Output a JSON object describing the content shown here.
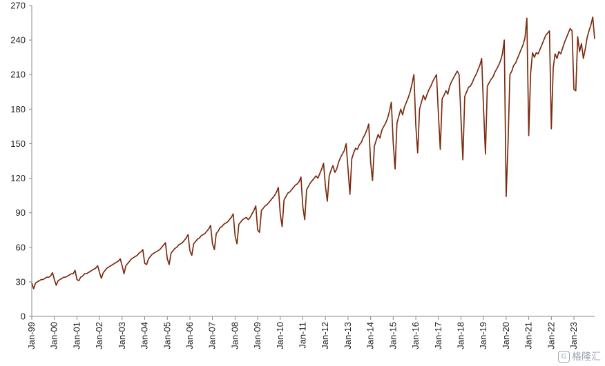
{
  "chart_data": {
    "type": "line",
    "title": "",
    "xlabel": "",
    "ylabel": "",
    "ylim": [
      0,
      270
    ],
    "y_ticks": [
      0,
      30,
      60,
      90,
      120,
      150,
      180,
      210,
      240,
      270
    ],
    "grid": false,
    "x_tick_labels": [
      "Jan-99",
      "Jan-00",
      "Jan-01",
      "Jan-02",
      "Jan-03",
      "Jan-04",
      "Jan-05",
      "Jan-06",
      "Jan-07",
      "Jan-08",
      "Jan-09",
      "Jan-10",
      "Jan-11",
      "Jan-12",
      "Jan-13",
      "Jan-14",
      "Jan-15",
      "Jan-16",
      "Jan-17",
      "Jan-18",
      "Jan-19",
      "Jan-20",
      "Jan-21",
      "Jan-22",
      "Jan-23"
    ],
    "x_range": [
      "1999-01",
      "2023-12"
    ],
    "series": [
      {
        "color": "#7b2c10",
        "x_start": "1999-01",
        "frequency": "monthly",
        "values": [
          29,
          24,
          29,
          30,
          31,
          32,
          32,
          33,
          34,
          34,
          35,
          38,
          32,
          27,
          31,
          32,
          33,
          34,
          34,
          35,
          36,
          37,
          37,
          40,
          32,
          31,
          34,
          35,
          37,
          37,
          38,
          39,
          40,
          41,
          42,
          44,
          38,
          33,
          38,
          40,
          42,
          43,
          44,
          45,
          46,
          47,
          48,
          50,
          44,
          37,
          44,
          46,
          48,
          50,
          51,
          52,
          53,
          55,
          56,
          58,
          46,
          45,
          50,
          52,
          54,
          55,
          56,
          57,
          58,
          60,
          62,
          64,
          50,
          45,
          55,
          57,
          59,
          60,
          62,
          63,
          64,
          66,
          68,
          71,
          57,
          53,
          63,
          65,
          67,
          68,
          70,
          71,
          72,
          74,
          76,
          79,
          63,
          58,
          72,
          74,
          77,
          78,
          80,
          81,
          82,
          84,
          86,
          89,
          70,
          63,
          80,
          82,
          84,
          85,
          86,
          84,
          86,
          89,
          92,
          96,
          75,
          73,
          92,
          94,
          96,
          97,
          99,
          101,
          103,
          105,
          108,
          112,
          89,
          78,
          101,
          104,
          107,
          108,
          110,
          112,
          114,
          115,
          117,
          121,
          95,
          84,
          110,
          113,
          116,
          118,
          120,
          122,
          120,
          124,
          128,
          133,
          113,
          100,
          122,
          127,
          131,
          125,
          128,
          134,
          138,
          141,
          144,
          150,
          128,
          106,
          137,
          142,
          146,
          145,
          149,
          151,
          155,
          158,
          162,
          167,
          134,
          118,
          148,
          153,
          158,
          155,
          162,
          165,
          168,
          172,
          178,
          186,
          151,
          128,
          168,
          174,
          180,
          175,
          182,
          186,
          190,
          195,
          202,
          210,
          166,
          142,
          180,
          186,
          192,
          188,
          193,
          197,
          200,
          204,
          207,
          210,
          176,
          145,
          189,
          192,
          196,
          193,
          200,
          204,
          207,
          210,
          213,
          210,
          172,
          136,
          191,
          195,
          199,
          200,
          203,
          207,
          210,
          214,
          218,
          224,
          180,
          141,
          200,
          203,
          206,
          208,
          212,
          215,
          218,
          222,
          228,
          240,
          104,
          151,
          210,
          213,
          218,
          220,
          224,
          228,
          232,
          236,
          242,
          259,
          157,
          211,
          229,
          225,
          229,
          228,
          232,
          236,
          240,
          244,
          246,
          248,
          163,
          216,
          228,
          224,
          230,
          228,
          233,
          238,
          242,
          246,
          250,
          248,
          197,
          196,
          243,
          230,
          237,
          224,
          232,
          242,
          248,
          253,
          260,
          241
        ]
      }
    ]
  },
  "watermark": {
    "badge": "G",
    "text": "格隆汇"
  }
}
